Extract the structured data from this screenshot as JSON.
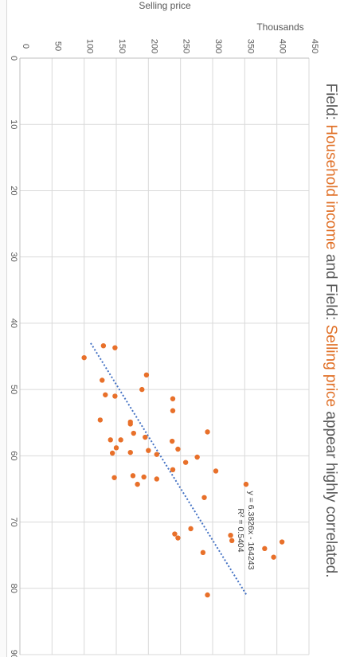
{
  "chart_data": {
    "type": "scatter",
    "title_parts": [
      {
        "text": "Field: ",
        "color": "#595959"
      },
      {
        "text": "Household income",
        "color": "#e07027"
      },
      {
        "text": " and Field: ",
        "color": "#595959"
      },
      {
        "text": "Selling price",
        "color": "#e07027"
      },
      {
        "text": " appear highly correlated.",
        "color": "#595959"
      }
    ],
    "ylabel": "Selling price",
    "y_units": "Thousands",
    "xlabel": "",
    "xlim": [
      0,
      90
    ],
    "ylim": [
      0,
      450
    ],
    "x_ticks": [
      0,
      10,
      20,
      30,
      40,
      50,
      60,
      70,
      80,
      90
    ],
    "y_ticks": [
      0,
      50,
      100,
      150,
      200,
      250,
      300,
      350,
      400,
      450
    ],
    "y_tick_labels": [
      "0",
      "50",
      "100",
      "150",
      "200",
      "250",
      "300",
      "350",
      "400",
      "450"
    ],
    "x_tick_labels": [
      "0",
      "10",
      "20",
      "30",
      "40",
      "50",
      "60",
      "70",
      "80",
      "90"
    ],
    "grid": true,
    "orientation": "rotated-90-clockwise",
    "marker_color": "#e8702a",
    "trendline_color": "#4472c4",
    "series": [
      {
        "points": [
          [
            45.2,
            100
          ],
          [
            43.4,
            130
          ],
          [
            43.7,
            148
          ],
          [
            47.8,
            197
          ],
          [
            48.6,
            128
          ],
          [
            50.0,
            190
          ],
          [
            50.8,
            133
          ],
          [
            51.0,
            148
          ],
          [
            51.4,
            238
          ],
          [
            53.2,
            238
          ],
          [
            54.6,
            125
          ],
          [
            54.9,
            172
          ],
          [
            55.2,
            172
          ],
          [
            56.4,
            292
          ],
          [
            56.6,
            177
          ],
          [
            57.2,
            195
          ],
          [
            57.6,
            141
          ],
          [
            57.6,
            157
          ],
          [
            57.8,
            237
          ],
          [
            58.8,
            150
          ],
          [
            59.0,
            246
          ],
          [
            59.2,
            200
          ],
          [
            59.5,
            172
          ],
          [
            59.6,
            144
          ],
          [
            59.8,
            213
          ],
          [
            60.2,
            276
          ],
          [
            61.0,
            258
          ],
          [
            62.1,
            238
          ],
          [
            62.3,
            305
          ],
          [
            63.0,
            176
          ],
          [
            63.2,
            193
          ],
          [
            63.3,
            147
          ],
          [
            63.5,
            213
          ],
          [
            64.3,
            183
          ],
          [
            64.3,
            352
          ],
          [
            66.3,
            287
          ],
          [
            71.0,
            266
          ],
          [
            71.8,
            241
          ],
          [
            72.0,
            328
          ],
          [
            72.4,
            246
          ],
          [
            72.8,
            330
          ],
          [
            73.0,
            408
          ],
          [
            74.0,
            381
          ],
          [
            74.6,
            285
          ],
          [
            75.3,
            395
          ],
          [
            81.0,
            292
          ]
        ]
      }
    ],
    "trendline": {
      "x_range": [
        43,
        81
      ],
      "equation": "y = 6.3826x - 164243",
      "r_squared": "R² = 0.5404"
    }
  }
}
